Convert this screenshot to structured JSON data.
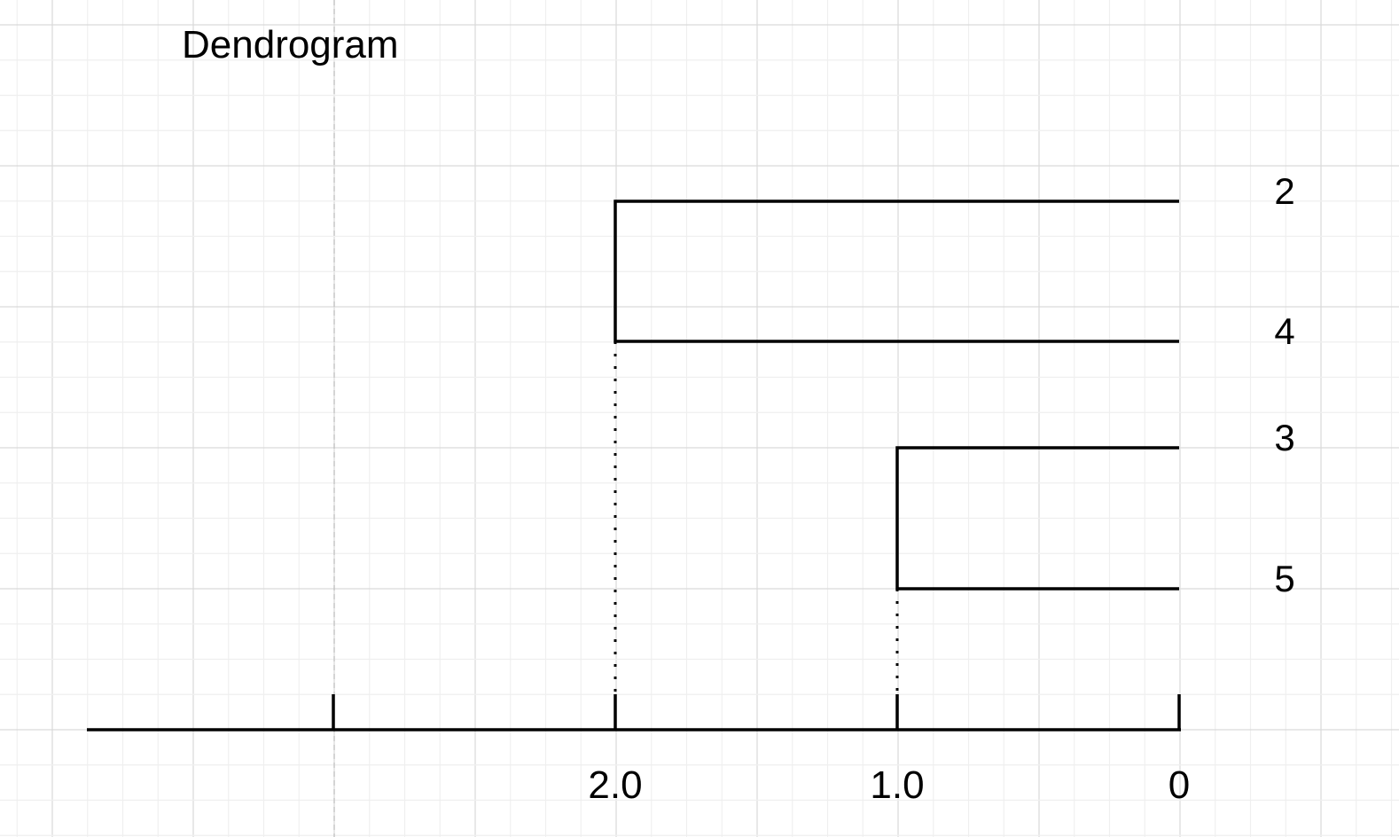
{
  "title": "Dendrogram",
  "leaves": [
    "2",
    "4",
    "3",
    "5"
  ],
  "axis": {
    "ticks": [
      {
        "value": 3.0,
        "label": ""
      },
      {
        "value": 2.0,
        "label": "2.0"
      },
      {
        "value": 1.0,
        "label": "1.0"
      },
      {
        "value": 0,
        "label": "0"
      }
    ]
  },
  "merges": [
    {
      "children": [
        "2",
        "4"
      ],
      "height": 2.0
    },
    {
      "children": [
        "3",
        "5"
      ],
      "height": 1.0
    }
  ],
  "colors": {
    "line": "#000000",
    "grid_major": "#d9d9d9",
    "grid_minor": "#efefef",
    "guide": "#bdbdbd",
    "background": "#ffffff"
  }
}
